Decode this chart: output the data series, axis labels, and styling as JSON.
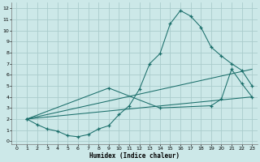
{
  "xlabel": "Humidex (Indice chaleur)",
  "bg_color": "#cce8e8",
  "grid_color": "#aacccc",
  "line_color": "#1a6e6a",
  "xlim": [
    -0.5,
    23.5
  ],
  "ylim": [
    -0.3,
    12.5
  ],
  "xticks": [
    0,
    1,
    2,
    3,
    4,
    5,
    6,
    7,
    8,
    9,
    10,
    11,
    12,
    13,
    14,
    15,
    16,
    17,
    18,
    19,
    20,
    21,
    22,
    23
  ],
  "yticks": [
    0,
    1,
    2,
    3,
    4,
    5,
    6,
    7,
    8,
    9,
    10,
    11,
    12
  ],
  "line1_x": [
    1,
    2,
    3,
    4,
    5,
    6,
    7,
    8,
    9,
    10,
    11,
    12,
    13,
    14,
    15,
    16,
    17,
    18,
    19,
    20,
    21,
    22,
    23
  ],
  "line1_y": [
    2.0,
    1.5,
    1.1,
    0.9,
    0.5,
    0.4,
    0.6,
    1.1,
    1.4,
    2.4,
    3.2,
    4.7,
    7.0,
    7.9,
    10.6,
    11.8,
    11.3,
    10.3,
    8.5,
    7.7,
    7.0,
    6.4,
    5.0
  ],
  "line2_x": [
    1,
    9,
    14,
    19,
    20,
    21,
    22,
    23
  ],
  "line2_y": [
    2.0,
    4.8,
    3.0,
    3.2,
    3.8,
    6.5,
    5.2,
    4.0
  ],
  "line3_x": [
    1,
    23
  ],
  "line3_y": [
    2.0,
    6.5
  ],
  "line4_x": [
    1,
    23
  ],
  "line4_y": [
    2.0,
    4.0
  ]
}
